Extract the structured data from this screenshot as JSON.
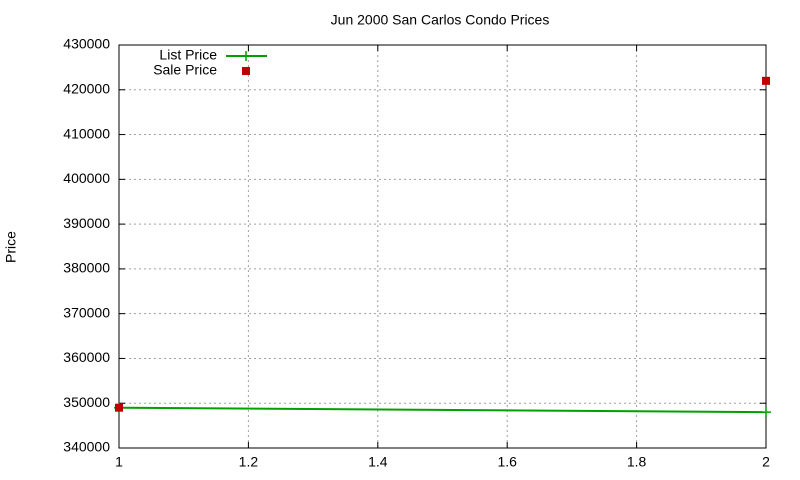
{
  "chart_data": {
    "type": "line",
    "title": "Jun 2000 San Carlos Condo Prices",
    "y_label": "Price",
    "x": [
      1,
      2
    ],
    "series": [
      {
        "name": "List Price",
        "color": "#00a000",
        "style": "linespoints",
        "values": [
          349000,
          348000
        ]
      },
      {
        "name": "Sale Price",
        "color": "#c00000",
        "style": "points",
        "values": [
          349000,
          422000
        ]
      }
    ],
    "xlim": [
      1,
      2
    ],
    "xticks": [
      1,
      1.2,
      1.4,
      1.6,
      1.8,
      2
    ],
    "ylim": [
      340000,
      430000
    ],
    "yticks": [
      340000,
      350000,
      360000,
      370000,
      380000,
      390000,
      400000,
      410000,
      420000,
      430000
    ],
    "grid": true,
    "legend_position": "top-left"
  }
}
